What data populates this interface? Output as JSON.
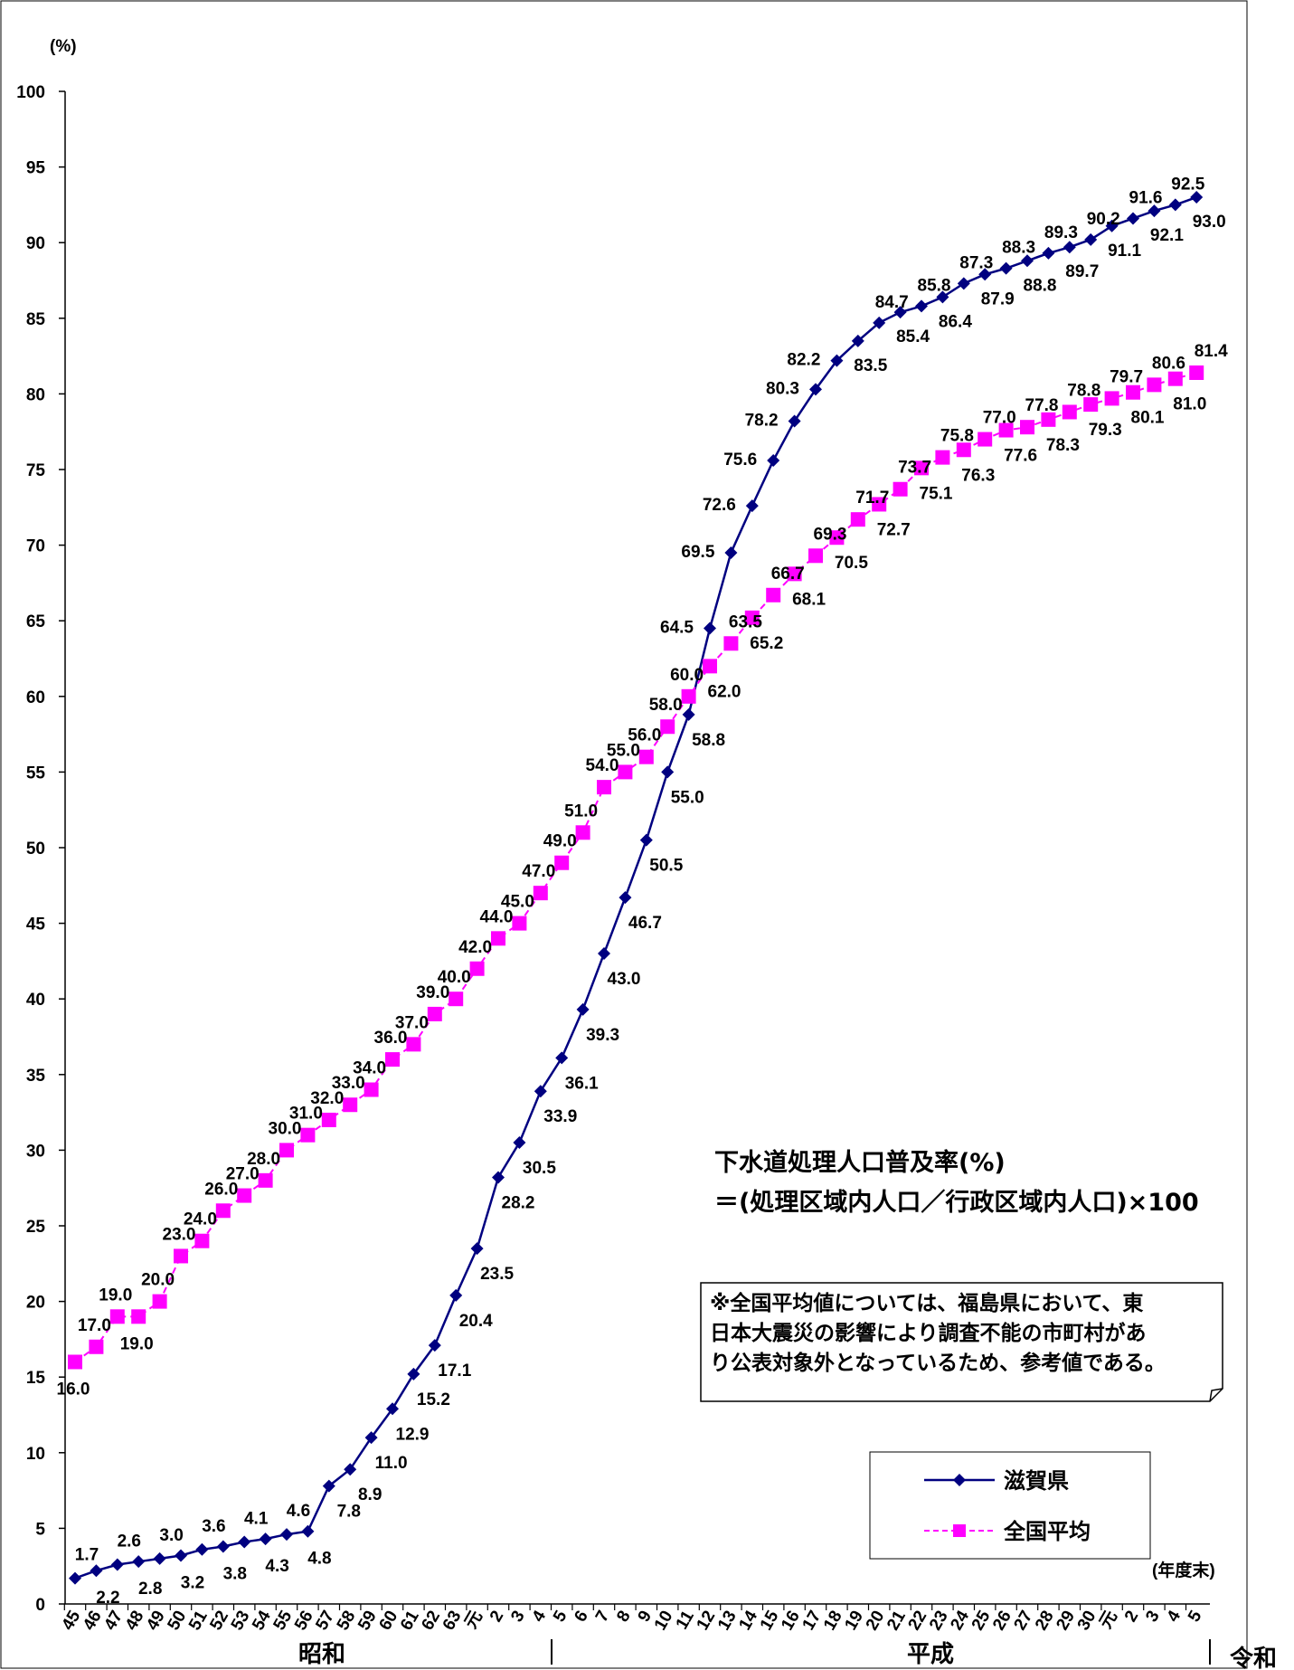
{
  "chart_data": {
    "type": "line",
    "y_unit": "(%)",
    "x_unit": "(年度末)",
    "ylim": [
      0,
      100
    ],
    "y_ticks": [
      "0",
      "5",
      "10",
      "15",
      "20",
      "25",
      "30",
      "35",
      "40",
      "45",
      "50",
      "55",
      "60",
      "65",
      "70",
      "75",
      "80",
      "85",
      "90",
      "95",
      "100"
    ],
    "categories": [
      "45",
      "46",
      "47",
      "48",
      "49",
      "50",
      "51",
      "52",
      "53",
      "54",
      "55",
      "56",
      "57",
      "58",
      "59",
      "60",
      "61",
      "62",
      "63",
      "元",
      "2",
      "3",
      "4",
      "5",
      "6",
      "7",
      "8",
      "9",
      "10",
      "11",
      "12",
      "13",
      "14",
      "15",
      "16",
      "17",
      "18",
      "19",
      "20",
      "21",
      "22",
      "23",
      "24",
      "25",
      "26",
      "27",
      "28",
      "29",
      "30",
      "元",
      "2",
      "3",
      "4",
      "5"
    ],
    "eras": [
      {
        "label": "昭和",
        "start_index": 0,
        "end_index": 18
      },
      {
        "label": "平成",
        "start_index": 19,
        "end_index": 48
      },
      {
        "label": "令和",
        "start_index": 49,
        "end_index": 53
      }
    ],
    "series": [
      {
        "name": "滋賀県",
        "color": "#000080",
        "marker": "diamond",
        "line": "solid",
        "values": [
          1.7,
          2.2,
          2.6,
          2.8,
          3.0,
          3.2,
          3.6,
          3.8,
          4.1,
          4.3,
          4.6,
          4.8,
          7.8,
          8.9,
          11.0,
          12.9,
          15.2,
          17.1,
          20.4,
          23.5,
          28.2,
          30.5,
          33.9,
          36.1,
          39.3,
          43.0,
          46.7,
          50.5,
          55.0,
          58.8,
          64.5,
          69.5,
          72.6,
          75.6,
          78.2,
          80.3,
          82.2,
          83.5,
          84.7,
          85.4,
          85.8,
          86.4,
          87.3,
          87.9,
          88.3,
          88.8,
          89.3,
          89.7,
          90.2,
          91.1,
          91.6,
          92.1,
          92.5,
          93.0
        ]
      },
      {
        "name": "全国平均",
        "color": "#ff00ff",
        "marker": "square",
        "line": "dashed",
        "start_index": 0,
        "values": [
          16.0,
          17.0,
          19.0,
          19.0,
          20.0,
          23.0,
          24.0,
          26.0,
          27.0,
          28.0,
          30.0,
          31.0,
          32.0,
          33.0,
          34.0,
          36.0,
          37.0,
          39.0,
          40.0,
          42.0,
          44.0,
          45.0,
          47.0,
          49.0,
          51.0,
          54.0,
          55.0,
          56.0,
          58.0,
          60.0,
          62.0,
          63.5,
          65.2,
          66.7,
          68.1,
          69.3,
          70.5,
          71.7,
          72.7,
          73.7,
          75.1,
          75.8,
          76.3,
          77.0,
          77.6,
          77.8,
          78.3,
          78.8,
          79.3,
          79.7,
          80.1,
          80.6,
          81.0,
          81.4
        ]
      }
    ],
    "legend_position": "bottom-right"
  },
  "formula": {
    "line1": "下水道処理人口普及率(%)",
    "line2": "＝(処理区域内人口／行政区域内人口)×100"
  },
  "note": {
    "line1": "※全国平均値については、福島県において、東",
    "line2": "日本大震災の影響により調査不能の市町村があ",
    "line3": "り公表対象外となっているため、参考値である。"
  }
}
